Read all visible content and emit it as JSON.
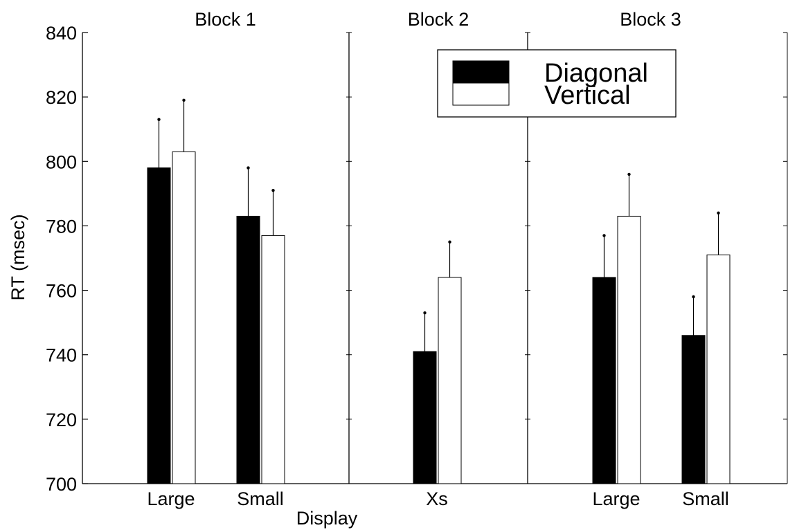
{
  "chart_data": {
    "type": "bar",
    "xlabel": "Display",
    "ylabel": "RT (msec)",
    "ylim": [
      700,
      840
    ],
    "yticks": [
      700,
      720,
      740,
      760,
      780,
      800,
      820,
      840
    ],
    "legend_position": "top-right",
    "blocks": [
      {
        "title": "Block 1",
        "categories": [
          "Large",
          "Small"
        ]
      },
      {
        "title": "Block 2",
        "categories": [
          "Xs"
        ]
      },
      {
        "title": "Block 3",
        "categories": [
          "Large",
          "Small"
        ]
      }
    ],
    "series": [
      {
        "name": "Diagonal",
        "color": "#000000",
        "values": [
          798,
          783,
          741,
          764,
          746
        ],
        "error_upper": [
          813,
          798,
          753,
          777,
          758
        ]
      },
      {
        "name": "Vertical",
        "color": "#ffffff",
        "values": [
          803,
          777,
          764,
          783,
          771
        ],
        "error_upper": [
          819,
          791,
          775,
          796,
          784
        ]
      }
    ]
  }
}
